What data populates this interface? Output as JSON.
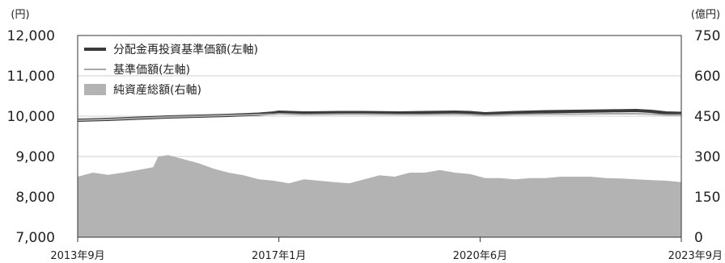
{
  "chart_data": {
    "type": "line",
    "left_unit": "(円)",
    "right_unit": "(億円)",
    "left_axis": {
      "min": 7000,
      "max": 12000,
      "ticks": [
        "7,000",
        "8,000",
        "9,000",
        "10,000",
        "11,000",
        "12,000"
      ]
    },
    "right_axis": {
      "min": 0,
      "max": 750,
      "ticks": [
        "0",
        "150",
        "300",
        "450",
        "600",
        "750"
      ]
    },
    "x_ticks": [
      "2013年9月",
      "2017年1月",
      "2020年6月",
      "2023年9月"
    ],
    "grid": true,
    "legend_position": "top-left",
    "x_range": [
      "2013-09",
      "2023-09"
    ],
    "series": [
      {
        "name": "分配金再投資基準価額(左軸)",
        "axis": "left",
        "kind": "line",
        "color": "#3a3a3a",
        "x": [
          "2013-09",
          "2014-03",
          "2014-09",
          "2015-03",
          "2015-09",
          "2016-03",
          "2016-09",
          "2016-12",
          "2017-01",
          "2017-06",
          "2018-01",
          "2018-06",
          "2019-01",
          "2019-06",
          "2019-12",
          "2020-03",
          "2020-06",
          "2020-12",
          "2021-06",
          "2021-12",
          "2022-06",
          "2022-12",
          "2023-03",
          "2023-06",
          "2023-09"
        ],
        "values": [
          9900,
          9920,
          9950,
          9980,
          10000,
          10020,
          10050,
          10080,
          10100,
          10080,
          10090,
          10090,
          10080,
          10090,
          10100,
          10090,
          10060,
          10090,
          10110,
          10120,
          10130,
          10140,
          10120,
          10080,
          10070
        ]
      },
      {
        "name": "基準価額(左軸)",
        "axis": "left",
        "kind": "line",
        "color": "#a8a8a8",
        "x": [
          "2013-09",
          "2014-03",
          "2014-09",
          "2015-03",
          "2015-09",
          "2016-03",
          "2016-09",
          "2016-12",
          "2017-01",
          "2017-06",
          "2018-01",
          "2018-06",
          "2019-01",
          "2019-06",
          "2019-12",
          "2020-03",
          "2020-06",
          "2020-12",
          "2021-06",
          "2021-12",
          "2022-06",
          "2022-12",
          "2023-03",
          "2023-06",
          "2023-09"
        ],
        "values": [
          9900,
          9920,
          9950,
          9980,
          10000,
          10020,
          10040,
          10050,
          10060,
          10040,
          10050,
          10050,
          10040,
          10040,
          10050,
          10040,
          10020,
          10040,
          10050,
          10050,
          10060,
          10060,
          10050,
          10030,
          10030
        ]
      },
      {
        "name": "純資産総額(右軸)",
        "axis": "right",
        "kind": "area",
        "color": "#b3b3b3",
        "x": [
          "2013-09",
          "2013-12",
          "2014-03",
          "2014-06",
          "2014-09",
          "2014-12",
          "2015-01",
          "2015-03",
          "2015-06",
          "2015-09",
          "2015-12",
          "2016-03",
          "2016-06",
          "2016-09",
          "2016-12",
          "2017-03",
          "2017-06",
          "2017-09",
          "2017-12",
          "2018-03",
          "2018-06",
          "2018-09",
          "2018-12",
          "2019-03",
          "2019-06",
          "2019-09",
          "2019-12",
          "2020-03",
          "2020-06",
          "2020-09",
          "2020-12",
          "2021-03",
          "2021-06",
          "2021-09",
          "2021-12",
          "2022-03",
          "2022-06",
          "2022-09",
          "2022-12",
          "2023-03",
          "2023-06",
          "2023-09"
        ],
        "values": [
          225,
          240,
          232,
          240,
          250,
          260,
          300,
          305,
          290,
          275,
          255,
          240,
          230,
          215,
          210,
          200,
          215,
          210,
          205,
          200,
          215,
          230,
          225,
          240,
          240,
          250,
          240,
          235,
          220,
          220,
          215,
          220,
          220,
          225,
          225,
          225,
          220,
          218,
          215,
          212,
          210,
          205
        ]
      }
    ]
  }
}
